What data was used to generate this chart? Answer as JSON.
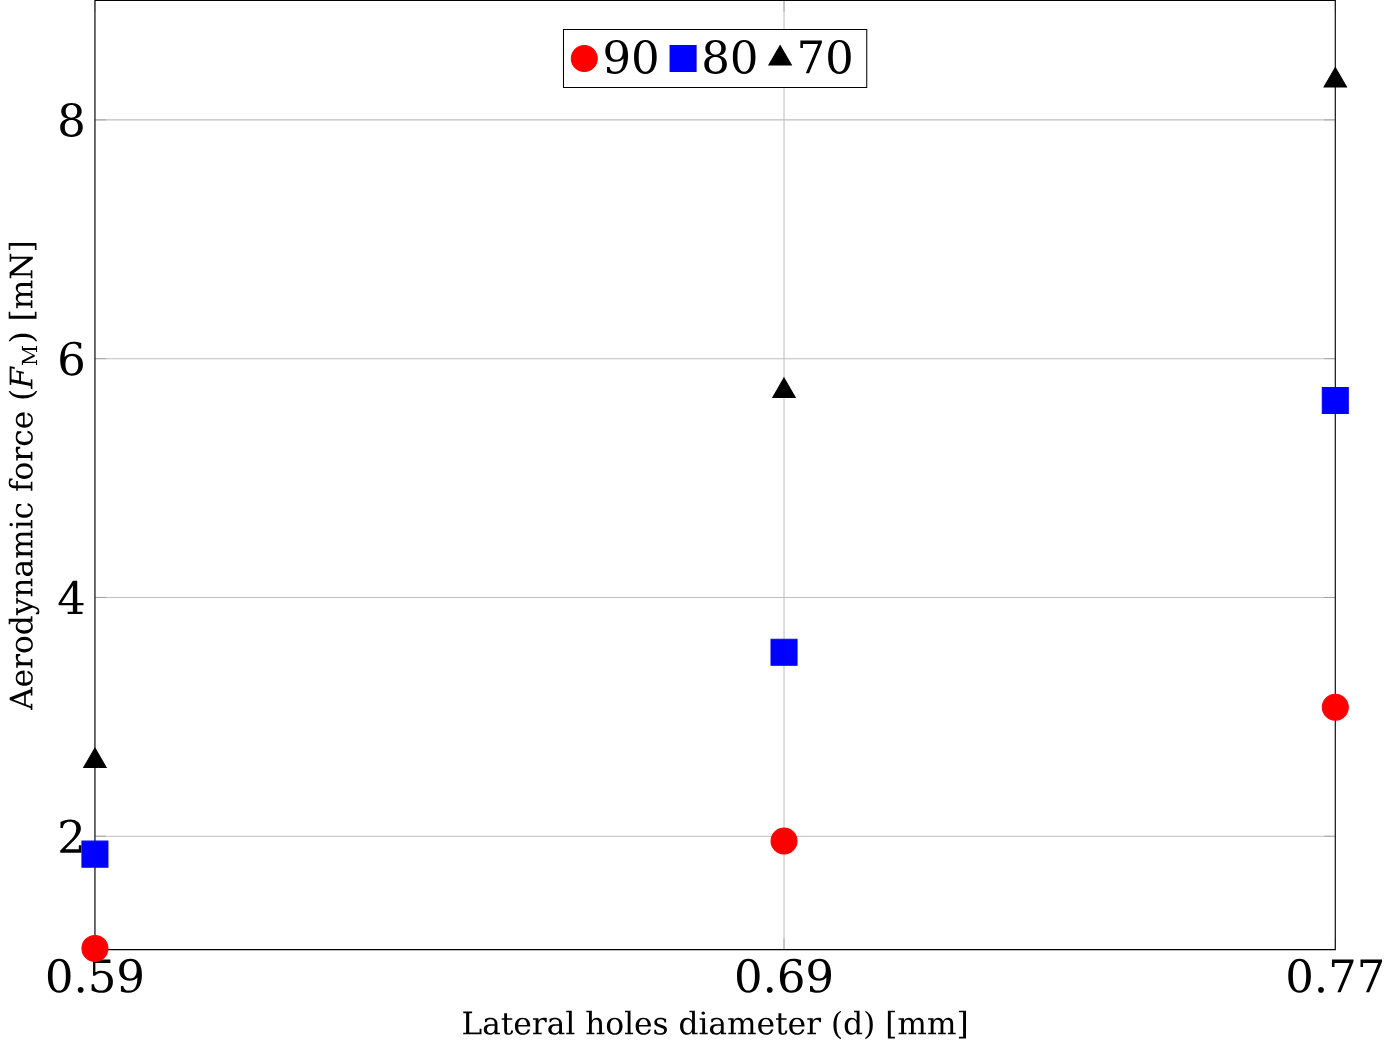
{
  "chart_data": {
    "type": "scatter",
    "xlabel": "Lateral holes diameter (d) [mm]",
    "ylabel": "Aerodynamic force (*F*$_{M}$) [mN]",
    "x": [
      0.59,
      0.69,
      0.77
    ],
    "series": [
      {
        "name": "90",
        "color": "#ff0000",
        "marker": "circle",
        "values": [
          1.06,
          1.96,
          3.08
        ]
      },
      {
        "name": "80",
        "color": "#0000ff",
        "marker": "square",
        "values": [
          1.85,
          3.54,
          5.65
        ]
      },
      {
        "name": "70",
        "color": "#000000",
        "marker": "triangle",
        "values": [
          2.63,
          5.73,
          8.33
        ]
      }
    ],
    "xlim": [
      0.59,
      0.77
    ],
    "ylim": [
      1.05,
      9
    ],
    "xticks": [
      0.59,
      0.69,
      0.77
    ],
    "yticks": [
      2,
      4,
      6,
      8
    ],
    "grid": true,
    "legend": "top"
  }
}
